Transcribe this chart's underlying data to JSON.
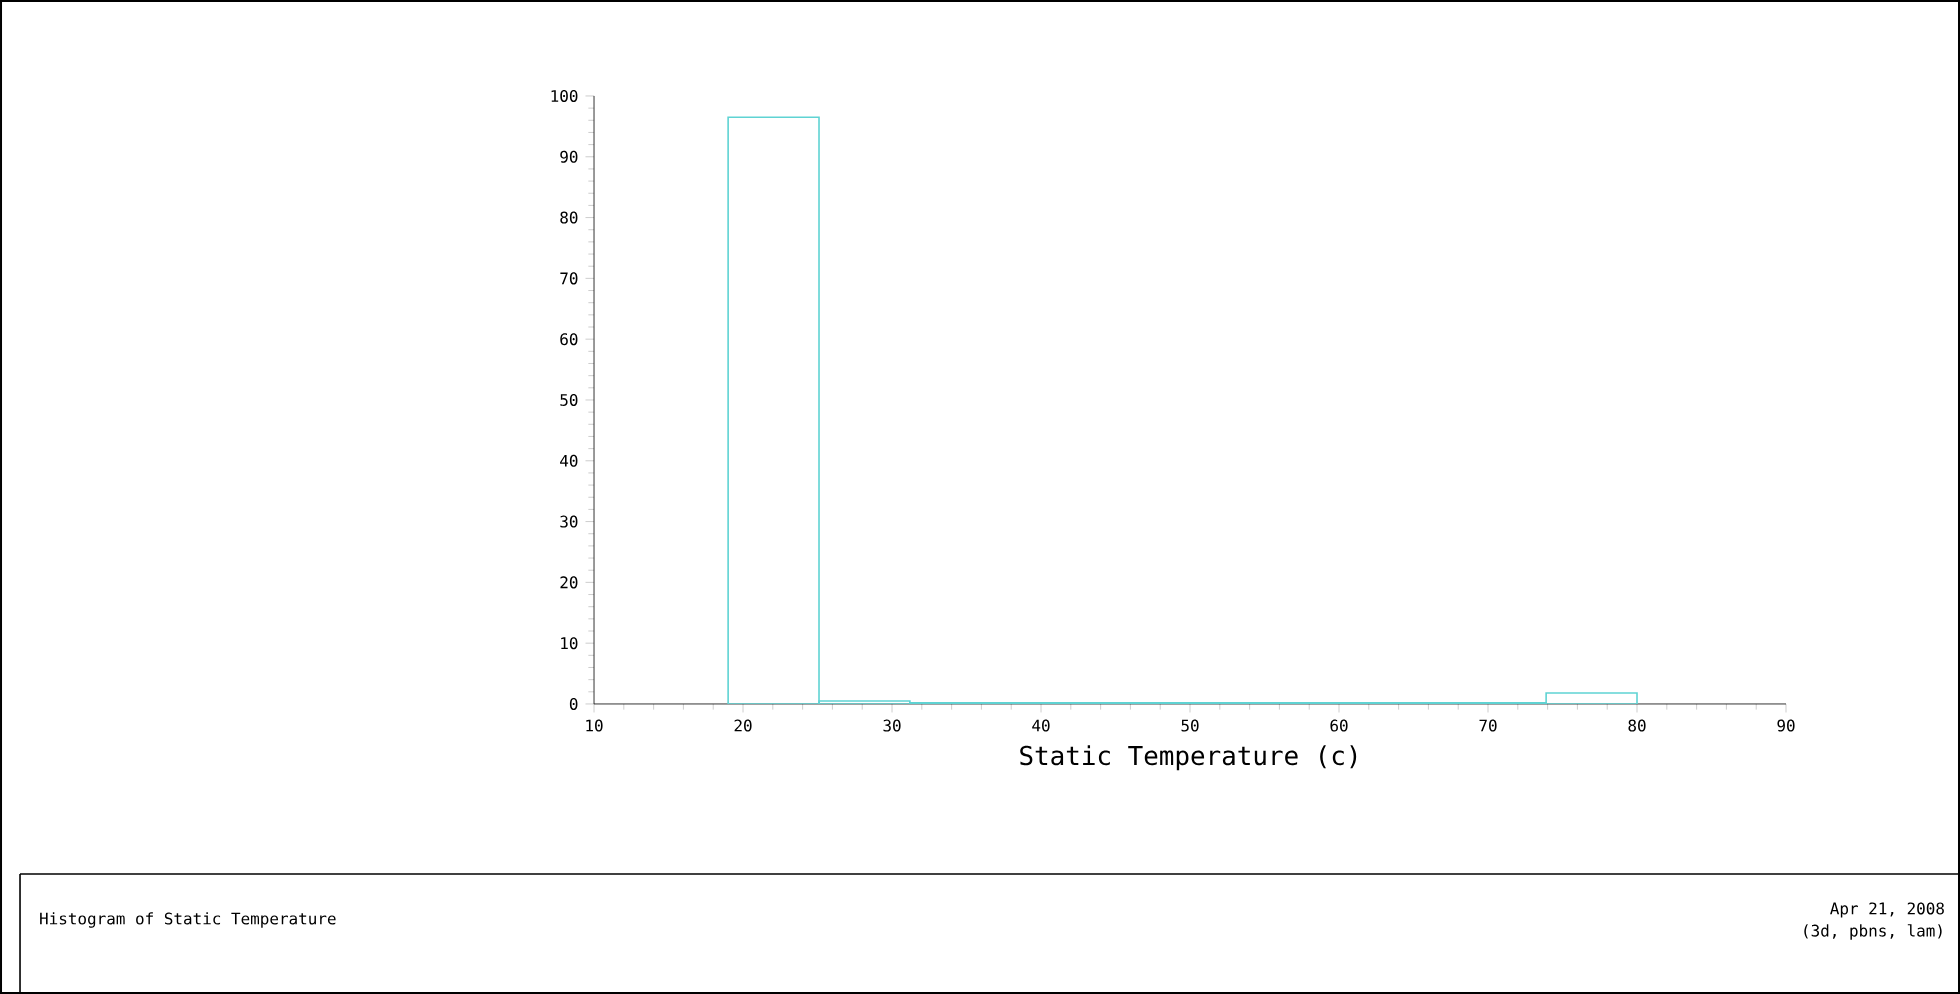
{
  "chart_data": {
    "type": "histogram",
    "title": "Histogram of Static Temperature",
    "xlabel": "Static Temperature (c)",
    "bins": [
      19,
      25.1,
      31.2,
      37.3,
      43.4,
      49.5,
      55.6,
      61.7,
      67.8,
      73.9,
      80
    ],
    "values": [
      96.5,
      0.5,
      0.2,
      0.2,
      0.2,
      0.2,
      0.2,
      0.2,
      0.2,
      1.8
    ],
    "color": "#5fd3d3",
    "xlim": [
      10,
      90
    ],
    "xticks": [
      10,
      20,
      30,
      40,
      50,
      60,
      70,
      80,
      90
    ],
    "ylim": [
      0,
      100
    ],
    "yticks": [
      0,
      10,
      20,
      30,
      40,
      50,
      60,
      70,
      80,
      90,
      100
    ],
    "grid": false,
    "annotations": [
      "Apr 21, 2008",
      "(3d, pbns, lam)"
    ]
  }
}
